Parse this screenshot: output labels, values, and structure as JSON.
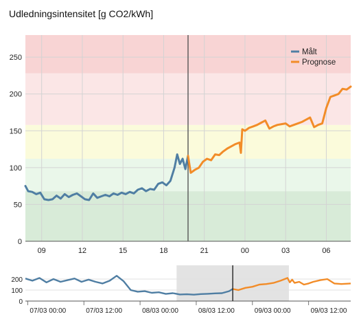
{
  "chart_data": {
    "type": "line",
    "title": "Udledningsintensitet [g CO2/kWh]",
    "ylim": [
      0,
      280
    ],
    "yticks": [
      0,
      50,
      100,
      150,
      200,
      250
    ],
    "xticks": [
      {
        "label": "09",
        "hour": 9
      },
      {
        "label": "12",
        "hour": 12
      },
      {
        "label": "15",
        "hour": 15
      },
      {
        "label": "18",
        "hour": 18
      },
      {
        "label": "21",
        "hour": 21
      },
      {
        "label": "00",
        "hour": 24
      },
      {
        "label": "03",
        "hour": 27
      },
      {
        "label": "06",
        "hour": 30
      }
    ],
    "xlim_hours": [
      7.8,
      31.8
    ],
    "now_hour": 19.8,
    "grid": true,
    "legend_position": "top-right",
    "bands": [
      {
        "from": 0,
        "to": 68,
        "color": "#d8ebd8"
      },
      {
        "from": 68,
        "to": 112,
        "color": "#eaf7ea"
      },
      {
        "from": 112,
        "to": 158,
        "color": "#fbfbdb"
      },
      {
        "from": 158,
        "to": 228,
        "color": "#fbe6e6"
      },
      {
        "from": 228,
        "to": 280,
        "color": "#f8d4d4"
      }
    ],
    "series": [
      {
        "name": "Målt",
        "color": "#4f7ea3",
        "x": [
          7.8,
          8.0,
          8.3,
          8.6,
          8.9,
          9.2,
          9.5,
          9.8,
          10.1,
          10.4,
          10.7,
          11.0,
          11.3,
          11.6,
          11.9,
          12.2,
          12.5,
          12.8,
          13.1,
          13.4,
          13.7,
          14.0,
          14.3,
          14.6,
          14.9,
          15.2,
          15.5,
          15.8,
          16.1,
          16.4,
          16.7,
          17.0,
          17.3,
          17.6,
          17.9,
          18.2,
          18.5,
          18.8,
          19.0,
          19.2,
          19.4,
          19.6,
          19.8
        ],
        "y": [
          75,
          68,
          67,
          64,
          66,
          57,
          56,
          57,
          62,
          58,
          64,
          60,
          63,
          65,
          61,
          57,
          56,
          65,
          59,
          61,
          63,
          61,
          65,
          63,
          66,
          64,
          67,
          65,
          70,
          72,
          68,
          71,
          70,
          78,
          80,
          76,
          82,
          100,
          118,
          105,
          112,
          98,
          116
        ]
      },
      {
        "name": "Prognose",
        "color": "#f28c28",
        "x": [
          19.8,
          20.0,
          20.3,
          20.6,
          20.9,
          21.2,
          21.5,
          21.8,
          22.1,
          22.4,
          22.7,
          23.0,
          23.3,
          23.6,
          23.7,
          23.8,
          24.0,
          24.3,
          24.6,
          24.9,
          25.2,
          25.5,
          25.8,
          26.1,
          26.4,
          26.7,
          27.0,
          27.3,
          27.6,
          27.9,
          28.2,
          28.5,
          28.8,
          29.1,
          29.4,
          29.7,
          30.0,
          30.3,
          30.6,
          30.9,
          31.2,
          31.5,
          31.8
        ],
        "y": [
          116,
          93,
          97,
          100,
          108,
          112,
          110,
          118,
          117,
          122,
          126,
          129,
          132,
          134,
          120,
          152,
          150,
          154,
          156,
          158,
          161,
          164,
          153,
          156,
          158,
          159,
          160,
          156,
          158,
          160,
          162,
          165,
          168,
          155,
          158,
          160,
          181,
          196,
          198,
          200,
          207,
          206,
          210
        ]
      }
    ],
    "navigator": {
      "ylim": [
        0,
        250
      ],
      "yticks": [
        0,
        100,
        200
      ],
      "xticks": [
        {
          "label": "07/03 00:00",
          "hour": -24
        },
        {
          "label": "07/03 12:00",
          "hour": -12
        },
        {
          "label": "08/03 00:00",
          "hour": 0
        },
        {
          "label": "08/03 12:00",
          "hour": 12
        },
        {
          "label": "09/03 00:00",
          "hour": 24
        },
        {
          "label": "09/03 12:00",
          "hour": 36
        }
      ],
      "xlim_hours": [
        -24.5,
        45
      ],
      "selection_hours": [
        7.8,
        31.8
      ],
      "measured": {
        "x": [
          -24.5,
          -23,
          -21.5,
          -20,
          -18.5,
          -17,
          -15.5,
          -14,
          -12.5,
          -11,
          -9.5,
          -8,
          -6.5,
          -5,
          -3.5,
          -2,
          -0.5,
          1,
          2.5,
          4,
          5.5,
          7,
          8.5,
          10,
          11.5,
          13,
          14.5,
          16,
          17.5,
          19,
          19.8
        ],
        "y": [
          205,
          185,
          210,
          170,
          200,
          175,
          190,
          205,
          175,
          195,
          175,
          160,
          185,
          230,
          180,
          100,
          85,
          90,
          75,
          80,
          65,
          72,
          60,
          62,
          58,
          64,
          66,
          70,
          72,
          90,
          110
        ]
      },
      "forecast": {
        "x": [
          19.8,
          21,
          22.5,
          24,
          25.5,
          27,
          28.5,
          30,
          31.5,
          32,
          32.5,
          33,
          34,
          35,
          36,
          37,
          38.5,
          40,
          41.5,
          43,
          45
        ],
        "y": [
          110,
          100,
          120,
          130,
          150,
          155,
          165,
          185,
          210,
          170,
          195,
          165,
          175,
          150,
          160,
          175,
          190,
          200,
          160,
          155,
          160
        ]
      }
    }
  }
}
